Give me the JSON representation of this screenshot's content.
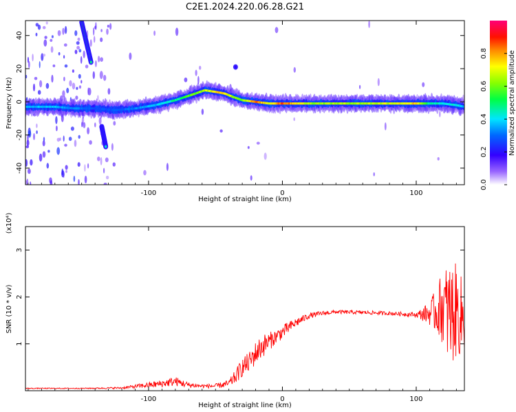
{
  "title": "C2E1.2024.220.06.28.G21",
  "chart_data": [
    {
      "id": "spectrogram",
      "type": "heatmap",
      "title": "C2E1.2024.220.06.28.G21",
      "xlabel": "Height of straight line (km)",
      "ylabel": "Frequency (Hz)",
      "xlim": [
        -192,
        136
      ],
      "ylim": [
        -50,
        49
      ],
      "xticks": [
        -100,
        0,
        100
      ],
      "yticks": [
        -40,
        -20,
        0,
        20,
        40
      ],
      "colorbar": {
        "label": "Normalized spectral amplitude",
        "range": [
          0,
          1
        ],
        "ticks": [
          0.0,
          0.2,
          0.4,
          0.6,
          0.8
        ],
        "colormap": "rainbow",
        "colors": [
          "#ffffff",
          "#6600cc",
          "#0000ff",
          "#00e5ff",
          "#00ff00",
          "#ffff00",
          "#ff9900",
          "#ff0000",
          "#ff0066"
        ]
      },
      "ridge": {
        "x": [
          -192,
          -170,
          -155,
          -140,
          -125,
          -110,
          -95,
          -80,
          -65,
          -58,
          -50,
          -43,
          -37,
          -30,
          -20,
          -10,
          0,
          20,
          40,
          60,
          80,
          100,
          110,
          120,
          130,
          136
        ],
        "y": [
          -3,
          -3,
          -4,
          -4,
          -5,
          -4,
          -2,
          1,
          5,
          7,
          6,
          5,
          3,
          1,
          0,
          -1,
          -1,
          -1,
          -1,
          -1,
          -1,
          -1,
          -1,
          -1,
          -2,
          -3
        ],
        "peak_amplitude": [
          0.4,
          0.4,
          0.35,
          0.3,
          0.3,
          0.35,
          0.4,
          0.5,
          0.65,
          0.7,
          0.8,
          0.8,
          0.7,
          0.65,
          0.9,
          0.75,
          0.95,
          0.7,
          0.7,
          0.7,
          0.75,
          0.8,
          0.5,
          0.45,
          0.45,
          0.4
        ]
      },
      "features": [
        {
          "name": "upper-streak",
          "x": [
            -150,
            -143
          ],
          "y": [
            48,
            24
          ],
          "amplitude": 0.5
        },
        {
          "name": "lower-streak",
          "x": [
            -135,
            -132
          ],
          "y": [
            -15,
            -27
          ],
          "amplitude": 0.45
        },
        {
          "name": "blob",
          "x": [
            -35
          ],
          "y": [
            21
          ],
          "amplitude": 0.2
        }
      ]
    },
    {
      "id": "snr",
      "type": "line",
      "xlabel": "Height of straight line (km)",
      "ylabel": "SNR (10 * v/v)",
      "y_multiplier": "(x10⁴)",
      "xlim": [
        -192,
        136
      ],
      "ylim": [
        0,
        3.5
      ],
      "xticks": [
        -100,
        0,
        100
      ],
      "yticks": [
        1,
        2,
        3
      ],
      "series": [
        {
          "color": "#ff0000",
          "x": [
            -192,
            -150,
            -120,
            -100,
            -90,
            -80,
            -70,
            -60,
            -50,
            -40,
            -35,
            -30,
            -25,
            -20,
            -15,
            -10,
            -5,
            0,
            10,
            20,
            30,
            40,
            60,
            80,
            100,
            110,
            115,
            120,
            125,
            130,
            136
          ],
          "y": [
            0.05,
            0.05,
            0.06,
            0.12,
            0.15,
            0.2,
            0.12,
            0.1,
            0.1,
            0.15,
            0.3,
            0.5,
            0.6,
            0.8,
            0.95,
            1.05,
            1.15,
            1.25,
            1.45,
            1.6,
            1.65,
            1.68,
            1.67,
            1.65,
            1.62,
            1.65,
            1.7,
            1.8,
            1.6,
            1.7,
            1.5
          ],
          "noise": [
            0.01,
            0.01,
            0.02,
            0.06,
            0.08,
            0.1,
            0.06,
            0.04,
            0.05,
            0.08,
            0.15,
            0.2,
            0.22,
            0.25,
            0.25,
            0.2,
            0.15,
            0.15,
            0.1,
            0.06,
            0.05,
            0.04,
            0.04,
            0.04,
            0.05,
            0.25,
            0.5,
            0.8,
            1.2,
            1.0,
            0.8
          ]
        }
      ]
    }
  ]
}
